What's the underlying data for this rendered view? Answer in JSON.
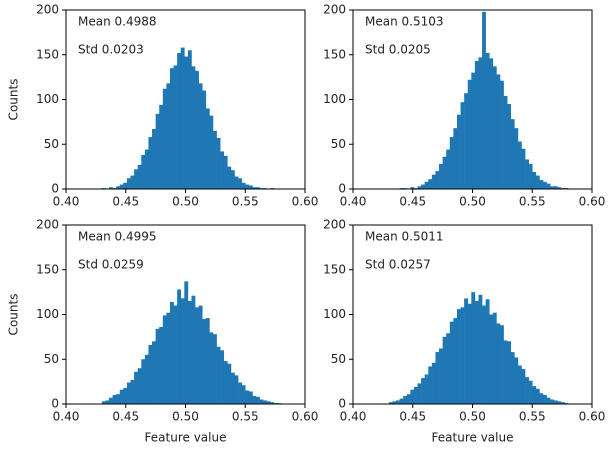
{
  "chart_data": [
    {
      "type": "histogram",
      "color": "#1f77b4",
      "ylabel": "Counts",
      "annotations": [
        "Mean 0.4988",
        "Std 0.0203"
      ],
      "bins": [
        0.43,
        0.433,
        0.436,
        0.439,
        0.442,
        0.445,
        0.448,
        0.451,
        0.454,
        0.457,
        0.46,
        0.463,
        0.466,
        0.469,
        0.472,
        0.475,
        0.478,
        0.481,
        0.484,
        0.487,
        0.49,
        0.493,
        0.496,
        0.499,
        0.502,
        0.505,
        0.508,
        0.511,
        0.514,
        0.517,
        0.52,
        0.523,
        0.526,
        0.529,
        0.532,
        0.535,
        0.538,
        0.541,
        0.544,
        0.547,
        0.55,
        0.553,
        0.556,
        0.559,
        0.562,
        0.565,
        0.568,
        0.571,
        0.574,
        0.577,
        0.58
      ],
      "counts": [
        1,
        0,
        2,
        1,
        3,
        5,
        7,
        12,
        15,
        22,
        27,
        38,
        44,
        58,
        67,
        84,
        94,
        112,
        118,
        135,
        138,
        152,
        158,
        148,
        155,
        137,
        132,
        118,
        110,
        90,
        82,
        65,
        57,
        42,
        37,
        25,
        21,
        14,
        12,
        7,
        5,
        4,
        2,
        2,
        1,
        1,
        0,
        1,
        0,
        0
      ],
      "xlim": [
        0.4,
        0.6
      ],
      "ylim": [
        0,
        200
      ],
      "xticks": [
        {
          "value": 0.4,
          "label": "0.40"
        },
        0.45,
        {
          "value": 0.5,
          "label": "0.50"
        },
        0.55,
        {
          "value": 0.6,
          "label": "0.60"
        }
      ],
      "yticks": [
        0,
        50,
        100,
        150,
        200
      ]
    },
    {
      "type": "histogram",
      "color": "#1f77b4",
      "annotations": [
        "Mean 0.5103",
        "Std 0.0205"
      ],
      "bins": [
        0.43,
        0.433,
        0.436,
        0.439,
        0.442,
        0.445,
        0.448,
        0.451,
        0.454,
        0.457,
        0.46,
        0.463,
        0.466,
        0.469,
        0.472,
        0.475,
        0.478,
        0.481,
        0.484,
        0.487,
        0.49,
        0.493,
        0.496,
        0.499,
        0.502,
        0.505,
        0.508,
        0.511,
        0.514,
        0.517,
        0.52,
        0.523,
        0.526,
        0.529,
        0.532,
        0.535,
        0.538,
        0.541,
        0.544,
        0.547,
        0.55,
        0.553,
        0.556,
        0.559,
        0.562,
        0.565,
        0.568,
        0.571,
        0.574,
        0.577,
        0.58
      ],
      "counts": [
        0,
        0,
        0,
        1,
        1,
        0,
        2,
        1,
        3,
        5,
        8,
        11,
        16,
        20,
        28,
        36,
        44,
        58,
        68,
        83,
        97,
        107,
        122,
        130,
        143,
        147,
        198,
        152,
        146,
        137,
        128,
        121,
        104,
        95,
        78,
        68,
        53,
        45,
        33,
        28,
        19,
        15,
        10,
        8,
        6,
        3,
        3,
        2,
        1,
        1
      ],
      "xlim": [
        0.4,
        0.6
      ],
      "ylim": [
        0,
        200
      ],
      "xticks": [
        {
          "value": 0.4,
          "label": "0.40"
        },
        0.45,
        {
          "value": 0.5,
          "label": "0.50"
        },
        0.55,
        {
          "value": 0.6,
          "label": "0.60"
        }
      ],
      "yticks": [
        0,
        50,
        100,
        150,
        200
      ]
    },
    {
      "type": "histogram",
      "color": "#1f77b4",
      "ylabel": "Counts",
      "xlabel": "Feature value",
      "annotations": [
        "Mean 0.4995",
        "Std 0.0259"
      ],
      "bins": [
        0.43,
        0.433,
        0.436,
        0.439,
        0.442,
        0.445,
        0.448,
        0.451,
        0.454,
        0.457,
        0.46,
        0.463,
        0.466,
        0.469,
        0.472,
        0.475,
        0.478,
        0.481,
        0.484,
        0.487,
        0.49,
        0.493,
        0.496,
        0.499,
        0.502,
        0.505,
        0.508,
        0.511,
        0.514,
        0.517,
        0.52,
        0.523,
        0.526,
        0.529,
        0.532,
        0.535,
        0.538,
        0.541,
        0.544,
        0.547,
        0.55,
        0.553,
        0.556,
        0.559,
        0.562,
        0.565,
        0.568,
        0.571,
        0.574,
        0.577,
        0.58
      ],
      "counts": [
        3,
        4,
        7,
        10,
        11,
        16,
        18,
        24,
        27,
        36,
        40,
        50,
        55,
        66,
        70,
        84,
        86,
        99,
        102,
        114,
        110,
        128,
        118,
        137,
        115,
        121,
        108,
        110,
        95,
        96,
        80,
        78,
        64,
        60,
        48,
        45,
        35,
        32,
        24,
        21,
        15,
        14,
        9,
        8,
        5,
        4,
        3,
        2,
        1,
        1
      ],
      "xlim": [
        0.4,
        0.6
      ],
      "ylim": [
        0,
        200
      ],
      "xticks": [
        {
          "value": 0.4,
          "label": "0.40"
        },
        0.45,
        {
          "value": 0.5,
          "label": "0.50"
        },
        0.55,
        {
          "value": 0.6,
          "label": "0.60"
        }
      ],
      "yticks": [
        0,
        50,
        100,
        150,
        200
      ]
    },
    {
      "type": "histogram",
      "color": "#1f77b4",
      "xlabel": "Feature value",
      "annotations": [
        "Mean 0.5011",
        "Std 0.0257"
      ],
      "bins": [
        0.43,
        0.433,
        0.436,
        0.439,
        0.442,
        0.445,
        0.448,
        0.451,
        0.454,
        0.457,
        0.46,
        0.463,
        0.466,
        0.469,
        0.472,
        0.475,
        0.478,
        0.481,
        0.484,
        0.487,
        0.49,
        0.493,
        0.496,
        0.499,
        0.502,
        0.505,
        0.508,
        0.511,
        0.514,
        0.517,
        0.52,
        0.523,
        0.526,
        0.529,
        0.532,
        0.535,
        0.538,
        0.541,
        0.544,
        0.547,
        0.55,
        0.553,
        0.556,
        0.559,
        0.562,
        0.565,
        0.568,
        0.571,
        0.574,
        0.577,
        0.58
      ],
      "counts": [
        2,
        3,
        4,
        6,
        9,
        11,
        16,
        19,
        23,
        29,
        33,
        42,
        46,
        58,
        62,
        75,
        79,
        92,
        96,
        106,
        108,
        118,
        112,
        125,
        115,
        122,
        110,
        117,
        100,
        102,
        90,
        88,
        71,
        70,
        58,
        52,
        43,
        39,
        30,
        26,
        20,
        17,
        12,
        10,
        7,
        5,
        4,
        3,
        2,
        1
      ],
      "xlim": [
        0.4,
        0.6
      ],
      "ylim": [
        0,
        200
      ],
      "xticks": [
        {
          "value": 0.4,
          "label": "0.40"
        },
        0.45,
        {
          "value": 0.5,
          "label": "0.50"
        },
        0.55,
        {
          "value": 0.6,
          "label": "0.60"
        }
      ],
      "yticks": [
        0,
        50,
        100,
        150,
        200
      ]
    }
  ]
}
